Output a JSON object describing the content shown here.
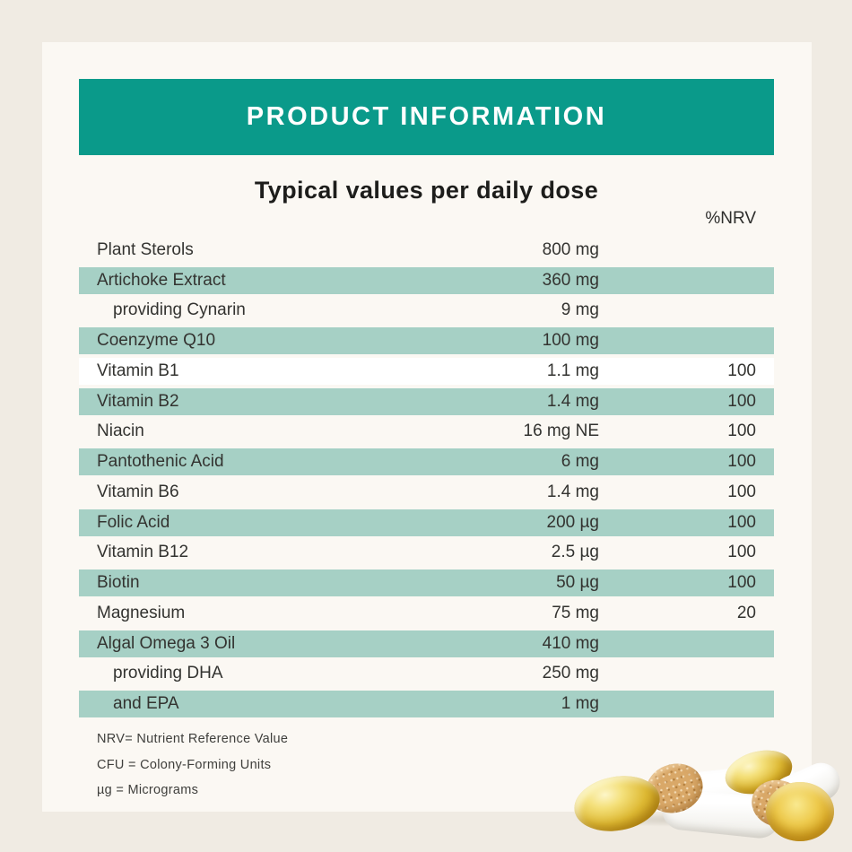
{
  "colors": {
    "teal": "#0a9a8a",
    "teal_light": "#a6d0c5",
    "card": "#fbf8f3",
    "background": "#f0ebe3"
  },
  "header": {
    "title": "PRODUCT INFORMATION"
  },
  "subtitle": "Typical values per daily dose",
  "table": {
    "nrv_header": "%NRV",
    "rows": [
      {
        "name": "Plant Sterols",
        "amount": "800 mg",
        "nrv": "",
        "variant": "plain",
        "indent": false
      },
      {
        "name": "Artichoke Extract",
        "amount": "360 mg",
        "nrv": "",
        "variant": "teal",
        "indent": false
      },
      {
        "name": "providing Cynarin",
        "amount": "9 mg",
        "nrv": "",
        "variant": "plain",
        "indent": true
      },
      {
        "name": "Coenzyme Q10",
        "amount": "100 mg",
        "nrv": "",
        "variant": "teal",
        "indent": false
      },
      {
        "name": "Vitamin B1",
        "amount": "1.1 mg",
        "nrv": "100",
        "variant": "white",
        "indent": false
      },
      {
        "name": "Vitamin B2",
        "amount": "1.4 mg",
        "nrv": "100",
        "variant": "teal",
        "indent": false
      },
      {
        "name": "Niacin",
        "amount": "16 mg NE",
        "nrv": "100",
        "variant": "plain",
        "indent": false
      },
      {
        "name": "Pantothenic Acid",
        "amount": "6 mg",
        "nrv": "100",
        "variant": "teal",
        "indent": false
      },
      {
        "name": "Vitamin B6",
        "amount": "1.4 mg",
        "nrv": "100",
        "variant": "plain",
        "indent": false
      },
      {
        "name": "Folic Acid",
        "amount": "200 µg",
        "nrv": "100",
        "variant": "teal",
        "indent": false
      },
      {
        "name": "Vitamin B12",
        "amount": "2.5 µg",
        "nrv": "100",
        "variant": "plain",
        "indent": false
      },
      {
        "name": "Biotin",
        "amount": "50 µg",
        "nrv": "100",
        "variant": "teal",
        "indent": false
      },
      {
        "name": "Magnesium",
        "amount": "75 mg",
        "nrv": "20",
        "variant": "plain",
        "indent": false
      },
      {
        "name": "Algal Omega 3 Oil",
        "amount": "410 mg",
        "nrv": "",
        "variant": "teal",
        "indent": false
      },
      {
        "name": "providing DHA",
        "amount": "250 mg",
        "nrv": "",
        "variant": "plain",
        "indent": true
      },
      {
        "name": "and EPA",
        "amount": "1 mg",
        "nrv": "",
        "variant": "teal",
        "indent": true
      }
    ]
  },
  "notes": [
    "NRV= Nutrient Reference Value",
    "CFU = Colony-Forming Units",
    "µg = Micrograms"
  ]
}
